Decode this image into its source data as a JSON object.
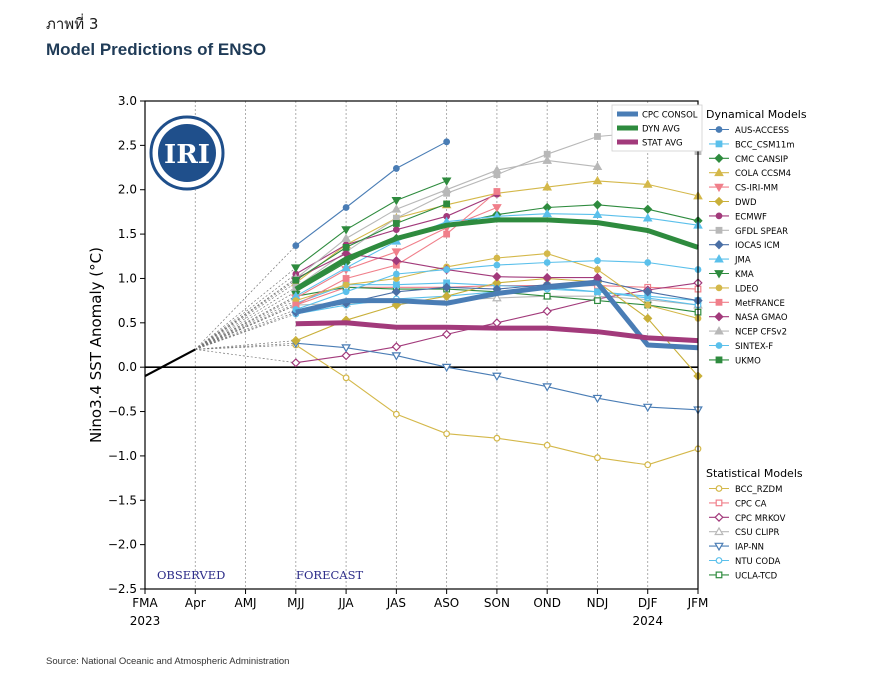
{
  "figure_number": "ภาพที่ 3",
  "figure_title": "Model Predictions of ENSO",
  "source": "Source: National Oceanic and Atmospheric Administration",
  "chart_data": {
    "type": "line",
    "title": "",
    "ylabel": "Nino3.4 SST Anomaly (°C)",
    "xlabel": "",
    "categories": [
      "FMA",
      "Apr",
      "AMJ",
      "MJJ",
      "JJA",
      "JAS",
      "ASO",
      "SON",
      "OND",
      "NDJ",
      "DJF",
      "JFM"
    ],
    "y_tick_labels": [
      "3.0",
      "2.5",
      "2.0",
      "1.5",
      "1.0",
      "0.5",
      "0.0",
      "−0.5",
      "−1.0",
      "−1.5",
      "−2.0",
      "−2.5"
    ],
    "ylim": [
      -2.5,
      3.0
    ],
    "year_labels": [
      {
        "at": "FMA",
        "text": "2023"
      },
      {
        "at": "DJF",
        "text": "2024"
      }
    ],
    "annotations": {
      "observed": "OBSERVED",
      "forecast": "FORECAST"
    },
    "logo_text": "IRI",
    "grid": "vertical dashed",
    "legend_placement": "right",
    "observed": [
      {
        "x": "FMA",
        "y": -0.1
      },
      {
        "x": "Apr",
        "y": 0.2
      }
    ],
    "summary": [
      {
        "name": "CPC CONSOL",
        "color": "#4a7db5",
        "values": [
          null,
          null,
          null,
          0.62,
          0.75,
          0.75,
          0.72,
          0.83,
          0.9,
          0.95,
          0.25,
          0.22
        ]
      },
      {
        "name": "DYN AVG",
        "color": "#2e8b3e",
        "values": [
          null,
          null,
          null,
          0.88,
          1.22,
          1.45,
          1.6,
          1.66,
          1.66,
          1.63,
          1.54,
          1.35
        ]
      },
      {
        "name": "STAT AVG",
        "color": "#a23a7b",
        "values": [
          null,
          null,
          null,
          0.49,
          0.5,
          0.45,
          0.45,
          0.44,
          0.44,
          0.4,
          0.33,
          0.3
        ]
      }
    ],
    "legend_dynamical_title": "Dynamical Models",
    "dynamical": [
      {
        "name": "AUS-ACCESS",
        "color": "#4a7db5",
        "marker": "circle",
        "values": [
          null,
          null,
          null,
          1.37,
          1.8,
          2.24,
          2.54,
          null,
          null,
          null,
          null,
          null
        ]
      },
      {
        "name": "BCC_CSM11m",
        "color": "#5bc0eb",
        "marker": "square",
        "values": [
          null,
          null,
          null,
          0.72,
          0.93,
          0.93,
          0.95,
          0.92,
          0.9,
          0.85,
          0.8,
          0.75
        ]
      },
      {
        "name": "CMC CANSIP",
        "color": "#2e8b3e",
        "marker": "diamond",
        "values": [
          null,
          null,
          null,
          0.85,
          1.18,
          1.45,
          1.6,
          1.72,
          1.8,
          1.83,
          1.78,
          1.65
        ]
      },
      {
        "name": "COLA CCSM4",
        "color": "#d4b84a",
        "marker": "triangle-up",
        "values": [
          null,
          null,
          null,
          0.95,
          1.38,
          1.68,
          1.83,
          1.96,
          2.03,
          2.1,
          2.06,
          1.93
        ]
      },
      {
        "name": "CS-IRI-MM",
        "color": "#f07f8a",
        "marker": "triangle-down",
        "values": [
          null,
          null,
          null,
          0.78,
          1.1,
          1.3,
          1.57,
          1.8,
          null,
          null,
          null,
          null
        ]
      },
      {
        "name": "DWD",
        "color": "#c9b03a",
        "marker": "diamond",
        "values": [
          null,
          null,
          null,
          0.3,
          0.53,
          0.7,
          0.8,
          0.95,
          1.0,
          0.96,
          0.55,
          -0.1
        ]
      },
      {
        "name": "ECMWF",
        "color": "#a23a7b",
        "marker": "circle",
        "values": [
          null,
          null,
          null,
          1.05,
          1.38,
          1.55,
          1.7,
          1.95,
          null,
          null,
          null,
          null
        ]
      },
      {
        "name": "GFDL SPEAR",
        "color": "#b8b8b8",
        "marker": "square",
        "values": [
          null,
          null,
          null,
          0.9,
          1.3,
          1.68,
          1.96,
          2.17,
          2.4,
          2.6,
          2.65,
          2.43
        ]
      },
      {
        "name": "IOCAS ICM",
        "color": "#4a6fa5",
        "marker": "diamond",
        "values": [
          null,
          null,
          null,
          0.62,
          0.72,
          0.85,
          0.9,
          0.88,
          0.93,
          0.98,
          0.85,
          0.75
        ]
      },
      {
        "name": "JMA",
        "color": "#5bc0eb",
        "marker": "triangle-up",
        "values": [
          null,
          null,
          null,
          0.8,
          1.12,
          1.42,
          1.64,
          1.7,
          1.73,
          1.72,
          1.68,
          1.6
        ]
      },
      {
        "name": "KMA",
        "color": "#2e8b3e",
        "marker": "triangle-down",
        "values": [
          null,
          null,
          null,
          1.12,
          1.55,
          1.88,
          2.1,
          null,
          null,
          null,
          null,
          null
        ]
      },
      {
        "name": "LDEO",
        "color": "#d4b84a",
        "marker": "circle",
        "values": [
          null,
          null,
          null,
          0.75,
          0.93,
          1.0,
          1.13,
          1.23,
          1.28,
          1.1,
          0.7,
          0.55
        ]
      },
      {
        "name": "MetFRANCE",
        "color": "#f07f8a",
        "marker": "square",
        "values": [
          null,
          null,
          null,
          0.7,
          1.0,
          1.15,
          1.5,
          1.98,
          null,
          null,
          null,
          null
        ]
      },
      {
        "name": "NASA GMAO",
        "color": "#a23a7b",
        "marker": "diamond",
        "values": [
          null,
          null,
          null,
          1.0,
          1.28,
          1.2,
          1.1,
          1.02,
          1.01,
          1.01,
          null,
          null
        ]
      },
      {
        "name": "NCEP CFSv2",
        "color": "#b8b8b8",
        "marker": "triangle-up",
        "values": [
          null,
          null,
          null,
          1.0,
          1.45,
          1.78,
          2.0,
          2.22,
          2.33,
          2.26,
          null,
          null
        ]
      },
      {
        "name": "SINTEX-F",
        "color": "#5bc0eb",
        "marker": "circle",
        "values": [
          null,
          null,
          null,
          0.65,
          0.85,
          1.05,
          1.1,
          1.15,
          1.18,
          1.2,
          1.18,
          1.1
        ]
      },
      {
        "name": "UKMO",
        "color": "#2e8b3e",
        "marker": "square",
        "values": [
          null,
          null,
          null,
          0.98,
          1.35,
          1.62,
          1.84,
          null,
          null,
          null,
          null,
          null
        ]
      }
    ],
    "legend_statistical_title": "Statistical Models",
    "statistical": [
      {
        "name": "BCC_RZDM",
        "color": "#d4b84a",
        "marker": "circle",
        "values": [
          null,
          null,
          null,
          0.25,
          -0.12,
          -0.53,
          -0.75,
          -0.8,
          -0.88,
          -1.02,
          -1.1,
          -0.92
        ]
      },
      {
        "name": "CPC CA",
        "color": "#f07f8a",
        "marker": "square",
        "values": [
          null,
          null,
          null,
          0.7,
          0.9,
          0.9,
          0.9,
          0.92,
          0.92,
          0.92,
          0.9,
          0.88
        ]
      },
      {
        "name": "CPC MRKOV",
        "color": "#a23a7b",
        "marker": "diamond",
        "values": [
          null,
          null,
          null,
          0.05,
          0.13,
          0.23,
          0.37,
          0.5,
          0.63,
          0.77,
          0.87,
          0.95
        ]
      },
      {
        "name": "CSU CLIPR",
        "color": "#b8b8b8",
        "marker": "triangle-up",
        "values": [
          null,
          null,
          null,
          0.7,
          0.72,
          0.74,
          0.75,
          0.78,
          0.8,
          0.8,
          0.76,
          0.7
        ]
      },
      {
        "name": "IAP-NN",
        "color": "#4a7db5",
        "marker": "triangle-down",
        "values": [
          null,
          null,
          null,
          0.27,
          0.22,
          0.13,
          0.0,
          -0.1,
          -0.22,
          -0.35,
          -0.45,
          -0.48
        ]
      },
      {
        "name": "NTU CODA",
        "color": "#5bc0eb",
        "marker": "circle",
        "values": [
          null,
          null,
          null,
          0.6,
          0.7,
          0.77,
          0.8,
          0.85,
          0.88,
          0.85,
          0.78,
          0.7
        ]
      },
      {
        "name": "UCLA-TCD",
        "color": "#2e8b3e",
        "marker": "square",
        "values": [
          null,
          null,
          null,
          0.8,
          0.9,
          0.88,
          0.88,
          0.85,
          0.8,
          0.75,
          0.7,
          0.62
        ]
      }
    ]
  }
}
